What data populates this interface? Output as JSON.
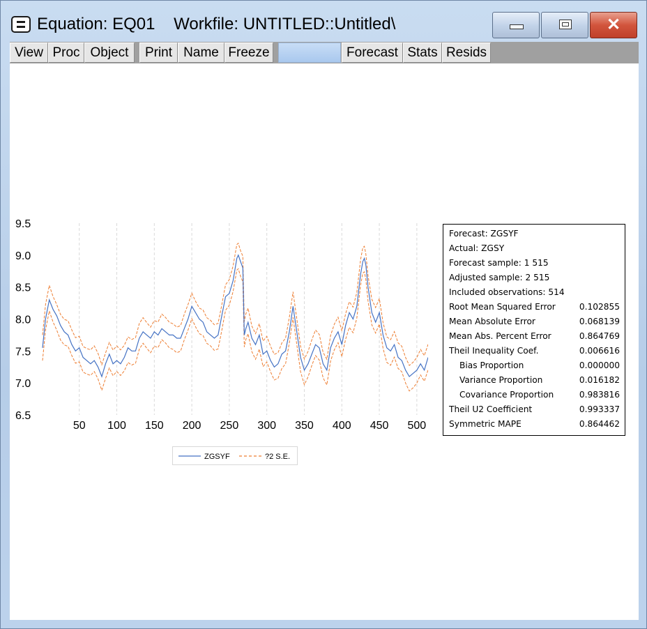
{
  "window": {
    "title": "Equation: EQ01    Workfile: UNTITLED::Untitled\\",
    "close_glyph": "✕"
  },
  "toolbar": {
    "buttons": [
      "View",
      "Proc",
      "Object",
      "Print",
      "Name",
      "Freeze",
      "Forecast",
      "Stats",
      "Resids"
    ]
  },
  "legend": {
    "series1": "ZGSYF",
    "series2": "?2 S.E."
  },
  "stats": {
    "forecast": "Forecast: ZGSYF",
    "actual": "Actual: ZGSY",
    "forecast_sample": "Forecast sample: 1 515",
    "adjusted_sample": "Adjusted sample: 2 515",
    "included_obs": "Included observations: 514",
    "rows": [
      {
        "label": "Root Mean Squared Error",
        "value": "0.102855",
        "indent": false
      },
      {
        "label": "Mean Absolute Error",
        "value": "0.068139",
        "indent": false
      },
      {
        "label": "Mean Abs. Percent Error",
        "value": "0.864769",
        "indent": false
      },
      {
        "label": "Theil Inequality Coef.",
        "value": "0.006616",
        "indent": false
      },
      {
        "label": "Bias Proportion",
        "value": "0.000000",
        "indent": true
      },
      {
        "label": "Variance Proportion",
        "value": "0.016182",
        "indent": true
      },
      {
        "label": "Covariance Proportion",
        "value": "0.983816",
        "indent": true
      },
      {
        "label": "Theil U2 Coefficient",
        "value": "0.993337",
        "indent": false
      },
      {
        "label": "Symmetric MAPE",
        "value": "0.864462",
        "indent": false
      }
    ]
  },
  "colors": {
    "forecast": "#4472c4",
    "band": "#ed7d31",
    "grid": "#d9d9d9"
  },
  "chart_data": {
    "type": "line",
    "title": "",
    "xlabel": "",
    "ylabel": "",
    "xlim": [
      1,
      515
    ],
    "ylim": [
      6.5,
      9.5
    ],
    "x_ticks": [
      50,
      100,
      150,
      200,
      250,
      300,
      350,
      400,
      450,
      500
    ],
    "y_ticks": [
      "6.5",
      "7.0",
      "7.5",
      "8.0",
      "8.5",
      "9.0",
      "9.5"
    ],
    "grid": "vertical dashed",
    "legend_position": "bottom",
    "band_width": 0.2,
    "series": [
      {
        "name": "ZGSYF",
        "x": [
          1,
          5,
          10,
          15,
          20,
          25,
          30,
          35,
          40,
          45,
          50,
          55,
          60,
          65,
          70,
          75,
          80,
          85,
          90,
          95,
          100,
          105,
          110,
          115,
          120,
          125,
          130,
          135,
          140,
          145,
          150,
          155,
          160,
          165,
          170,
          175,
          180,
          185,
          190,
          195,
          200,
          205,
          210,
          215,
          220,
          225,
          230,
          235,
          240,
          245,
          250,
          255,
          260,
          262,
          265,
          268,
          270,
          272,
          275,
          280,
          285,
          290,
          295,
          300,
          305,
          310,
          315,
          320,
          325,
          330,
          335,
          340,
          345,
          350,
          355,
          360,
          365,
          370,
          375,
          380,
          385,
          390,
          395,
          400,
          405,
          410,
          415,
          420,
          425,
          428,
          430,
          432,
          435,
          440,
          445,
          450,
          455,
          460,
          465,
          470,
          475,
          480,
          485,
          490,
          495,
          500,
          505,
          510,
          515
        ],
        "values": [
          7.55,
          8.0,
          8.3,
          8.15,
          8.05,
          7.9,
          7.8,
          7.75,
          7.6,
          7.5,
          7.55,
          7.4,
          7.35,
          7.3,
          7.35,
          7.25,
          7.1,
          7.3,
          7.45,
          7.3,
          7.35,
          7.3,
          7.4,
          7.55,
          7.5,
          7.5,
          7.7,
          7.8,
          7.75,
          7.7,
          7.8,
          7.75,
          7.85,
          7.8,
          7.75,
          7.75,
          7.7,
          7.7,
          7.85,
          8.0,
          8.2,
          8.1,
          8.0,
          7.95,
          7.8,
          7.75,
          7.7,
          7.75,
          8.05,
          8.35,
          8.4,
          8.6,
          8.95,
          9.0,
          8.9,
          8.8,
          7.75,
          7.85,
          7.95,
          7.7,
          7.6,
          7.75,
          7.45,
          7.5,
          7.35,
          7.25,
          7.3,
          7.45,
          7.5,
          7.8,
          8.2,
          7.8,
          7.4,
          7.2,
          7.3,
          7.45,
          7.6,
          7.55,
          7.3,
          7.2,
          7.55,
          7.7,
          7.8,
          7.6,
          7.9,
          8.1,
          8.0,
          8.2,
          8.7,
          8.9,
          8.95,
          8.85,
          8.5,
          8.1,
          7.95,
          8.1,
          7.75,
          7.55,
          7.5,
          7.6,
          7.4,
          7.35,
          7.2,
          7.1,
          7.15,
          7.2,
          7.3,
          7.2,
          7.4
        ]
      },
      {
        "name": "?2 S.E.",
        "type": "band"
      }
    ]
  }
}
